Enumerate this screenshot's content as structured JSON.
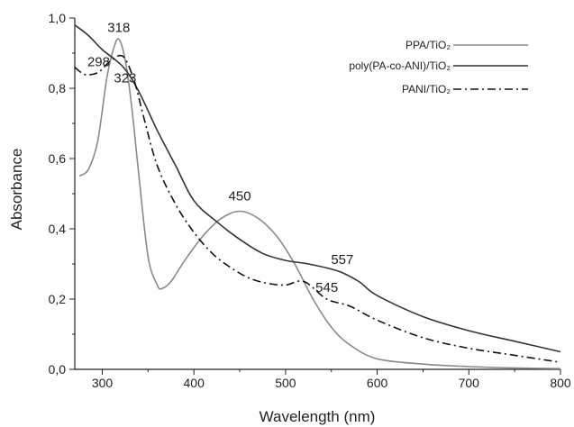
{
  "chart_data": {
    "type": "line",
    "xlabel": "Wavelength (nm)",
    "ylabel": "Absorbance",
    "xlim": [
      270,
      800
    ],
    "ylim": [
      0.0,
      1.0
    ],
    "xticks": [
      300,
      400,
      500,
      600,
      700,
      800
    ],
    "yticks": [
      0.0,
      0.2,
      0.4,
      0.6,
      0.8,
      1.0
    ],
    "xtick_labels": [
      "300",
      "400",
      "500",
      "600",
      "700",
      "800"
    ],
    "ytick_labels": [
      "0,0",
      "0,2",
      "0,4",
      "0,6",
      "0,8",
      "1,0"
    ],
    "grid": false,
    "legend_position": "top-right",
    "series": [
      {
        "name": "PPA/TiO₂",
        "color": "#8a8a8a",
        "dash": "solid",
        "x": [
          275,
          285,
          295,
          305,
          312,
          318,
          325,
          332,
          340,
          350,
          360,
          365,
          375,
          390,
          410,
          430,
          450,
          470,
          490,
          510,
          530,
          550,
          570,
          600,
          650,
          700,
          750,
          800
        ],
        "y": [
          0.55,
          0.57,
          0.65,
          0.83,
          0.91,
          0.94,
          0.88,
          0.75,
          0.55,
          0.32,
          0.24,
          0.23,
          0.25,
          0.31,
          0.38,
          0.43,
          0.45,
          0.43,
          0.38,
          0.3,
          0.2,
          0.12,
          0.07,
          0.03,
          0.015,
          0.008,
          0.004,
          0.002
        ]
      },
      {
        "name": "poly(PA-co-ANI)/TiO₂",
        "color": "#333333",
        "dash": "solid",
        "x": [
          270,
          285,
          300,
          323,
          340,
          360,
          380,
          400,
          425,
          450,
          475,
          500,
          525,
          557,
          580,
          600,
          650,
          700,
          750,
          800
        ],
        "y": [
          0.98,
          0.95,
          0.91,
          0.86,
          0.79,
          0.68,
          0.58,
          0.48,
          0.42,
          0.37,
          0.33,
          0.31,
          0.3,
          0.28,
          0.25,
          0.21,
          0.15,
          0.11,
          0.08,
          0.05
        ]
      },
      {
        "name": "PANI/TiO₂",
        "color": "#111111",
        "dash": "dashdot",
        "x": [
          270,
          280,
          290,
          298,
          310,
          323,
          335,
          345,
          360,
          380,
          400,
          420,
          440,
          460,
          480,
          500,
          520,
          545,
          570,
          600,
          650,
          700,
          750,
          800
        ],
        "y": [
          0.86,
          0.84,
          0.84,
          0.85,
          0.88,
          0.89,
          0.82,
          0.72,
          0.58,
          0.47,
          0.39,
          0.33,
          0.29,
          0.26,
          0.245,
          0.24,
          0.25,
          0.2,
          0.18,
          0.14,
          0.09,
          0.06,
          0.04,
          0.02
        ]
      }
    ],
    "annotations": [
      {
        "text": "318",
        "x": 318,
        "y": 0.94
      },
      {
        "text": "298",
        "x": 298,
        "y": 0.86
      },
      {
        "text": "323",
        "x": 323,
        "y": 0.86
      },
      {
        "text": "450",
        "x": 450,
        "y": 0.45
      },
      {
        "text": "557",
        "x": 557,
        "y": 0.28
      },
      {
        "text": "545",
        "x": 545,
        "y": 0.2
      }
    ]
  }
}
